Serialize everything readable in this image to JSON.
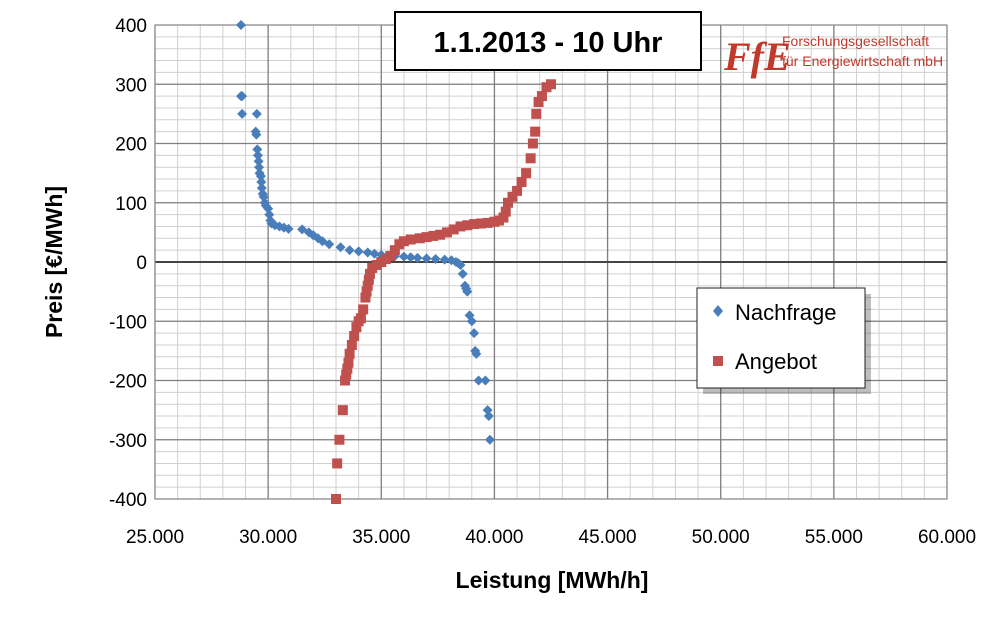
{
  "chart_data": {
    "type": "scatter",
    "title": "1.1.2013 - 10 Uhr",
    "xlabel": "Leistung [MWh/h]",
    "ylabel": "Preis [€/MWh]",
    "xlim": [
      25000,
      60000
    ],
    "ylim": [
      -400,
      400
    ],
    "x_ticks": [
      25000,
      30000,
      35000,
      40000,
      45000,
      50000,
      55000,
      60000
    ],
    "x_tick_labels": [
      "25.000",
      "30.000",
      "35.000",
      "40.000",
      "45.000",
      "50.000",
      "55.000",
      "60.000"
    ],
    "y_ticks": [
      -400,
      -300,
      -200,
      -100,
      0,
      100,
      200,
      300,
      400
    ],
    "y_tick_labels": [
      "-400",
      "-300",
      "-200",
      "-100",
      "0",
      "100",
      "200",
      "300",
      "400"
    ],
    "grid": true,
    "legend_position": "right",
    "logo": {
      "mark": "FfE",
      "line1": "Forschungsgesellschaft",
      "line2": "für Energiewirtschaft mbH"
    },
    "series": [
      {
        "name": "Nachfrage",
        "marker": "diamond",
        "color": "#4a7ebb",
        "points": [
          [
            28800,
            400
          ],
          [
            28800,
            280
          ],
          [
            28850,
            280
          ],
          [
            28850,
            250
          ],
          [
            29500,
            250
          ],
          [
            29450,
            220
          ],
          [
            29480,
            215
          ],
          [
            29520,
            190
          ],
          [
            29550,
            180
          ],
          [
            29580,
            170
          ],
          [
            29600,
            160
          ],
          [
            29620,
            150
          ],
          [
            29680,
            145
          ],
          [
            29700,
            135
          ],
          [
            29720,
            125
          ],
          [
            29760,
            115
          ],
          [
            29800,
            110
          ],
          [
            29850,
            100
          ],
          [
            29900,
            95
          ],
          [
            30000,
            90
          ],
          [
            30050,
            80
          ],
          [
            30100,
            70
          ],
          [
            30150,
            65
          ],
          [
            30300,
            62
          ],
          [
            30500,
            60
          ],
          [
            30700,
            58
          ],
          [
            30900,
            56
          ],
          [
            31500,
            55
          ],
          [
            31800,
            50
          ],
          [
            32000,
            45
          ],
          [
            32200,
            40
          ],
          [
            32400,
            35
          ],
          [
            32700,
            30
          ],
          [
            33200,
            25
          ],
          [
            33600,
            20
          ],
          [
            34000,
            18
          ],
          [
            34400,
            16
          ],
          [
            34700,
            14
          ],
          [
            35000,
            12
          ],
          [
            35300,
            11
          ],
          [
            35600,
            10
          ],
          [
            36000,
            9
          ],
          [
            36300,
            8
          ],
          [
            36600,
            7
          ],
          [
            37000,
            6
          ],
          [
            37400,
            5
          ],
          [
            37800,
            4
          ],
          [
            38100,
            3
          ],
          [
            38300,
            0
          ],
          [
            38400,
            -2
          ],
          [
            38500,
            -5
          ],
          [
            38600,
            -20
          ],
          [
            38700,
            -40
          ],
          [
            38750,
            -45
          ],
          [
            38800,
            -50
          ],
          [
            38900,
            -90
          ],
          [
            39000,
            -100
          ],
          [
            39100,
            -120
          ],
          [
            39150,
            -150
          ],
          [
            39200,
            -155
          ],
          [
            39300,
            -200
          ],
          [
            39600,
            -200
          ],
          [
            39700,
            -250
          ],
          [
            39750,
            -260
          ],
          [
            39800,
            -300
          ]
        ]
      },
      {
        "name": "Angebot",
        "marker": "square",
        "color": "#c0504d",
        "points": [
          [
            33000,
            -400
          ],
          [
            33050,
            -340
          ],
          [
            33150,
            -300
          ],
          [
            33300,
            -250
          ],
          [
            33400,
            -200
          ],
          [
            33450,
            -190
          ],
          [
            33500,
            -180
          ],
          [
            33550,
            -170
          ],
          [
            33600,
            -155
          ],
          [
            33700,
            -140
          ],
          [
            33800,
            -125
          ],
          [
            33900,
            -110
          ],
          [
            34000,
            -100
          ],
          [
            34100,
            -95
          ],
          [
            34200,
            -80
          ],
          [
            34300,
            -60
          ],
          [
            34350,
            -50
          ],
          [
            34400,
            -40
          ],
          [
            34450,
            -30
          ],
          [
            34500,
            -20
          ],
          [
            34600,
            -10
          ],
          [
            34800,
            -5
          ],
          [
            35000,
            0
          ],
          [
            35200,
            5
          ],
          [
            35400,
            10
          ],
          [
            35600,
            20
          ],
          [
            35800,
            30
          ],
          [
            36000,
            35
          ],
          [
            36300,
            38
          ],
          [
            36700,
            40
          ],
          [
            37000,
            42
          ],
          [
            37300,
            44
          ],
          [
            37600,
            46
          ],
          [
            37900,
            50
          ],
          [
            38200,
            55
          ],
          [
            38500,
            60
          ],
          [
            38800,
            62
          ],
          [
            39100,
            64
          ],
          [
            39400,
            65
          ],
          [
            39700,
            66
          ],
          [
            40000,
            68
          ],
          [
            40200,
            70
          ],
          [
            40400,
            75
          ],
          [
            40500,
            85
          ],
          [
            40600,
            100
          ],
          [
            40800,
            110
          ],
          [
            41000,
            120
          ],
          [
            41200,
            135
          ],
          [
            41400,
            150
          ],
          [
            41600,
            175
          ],
          [
            41700,
            200
          ],
          [
            41800,
            220
          ],
          [
            41850,
            250
          ],
          [
            41950,
            270
          ],
          [
            42100,
            280
          ],
          [
            42300,
            295
          ],
          [
            42500,
            300
          ]
        ]
      }
    ]
  }
}
